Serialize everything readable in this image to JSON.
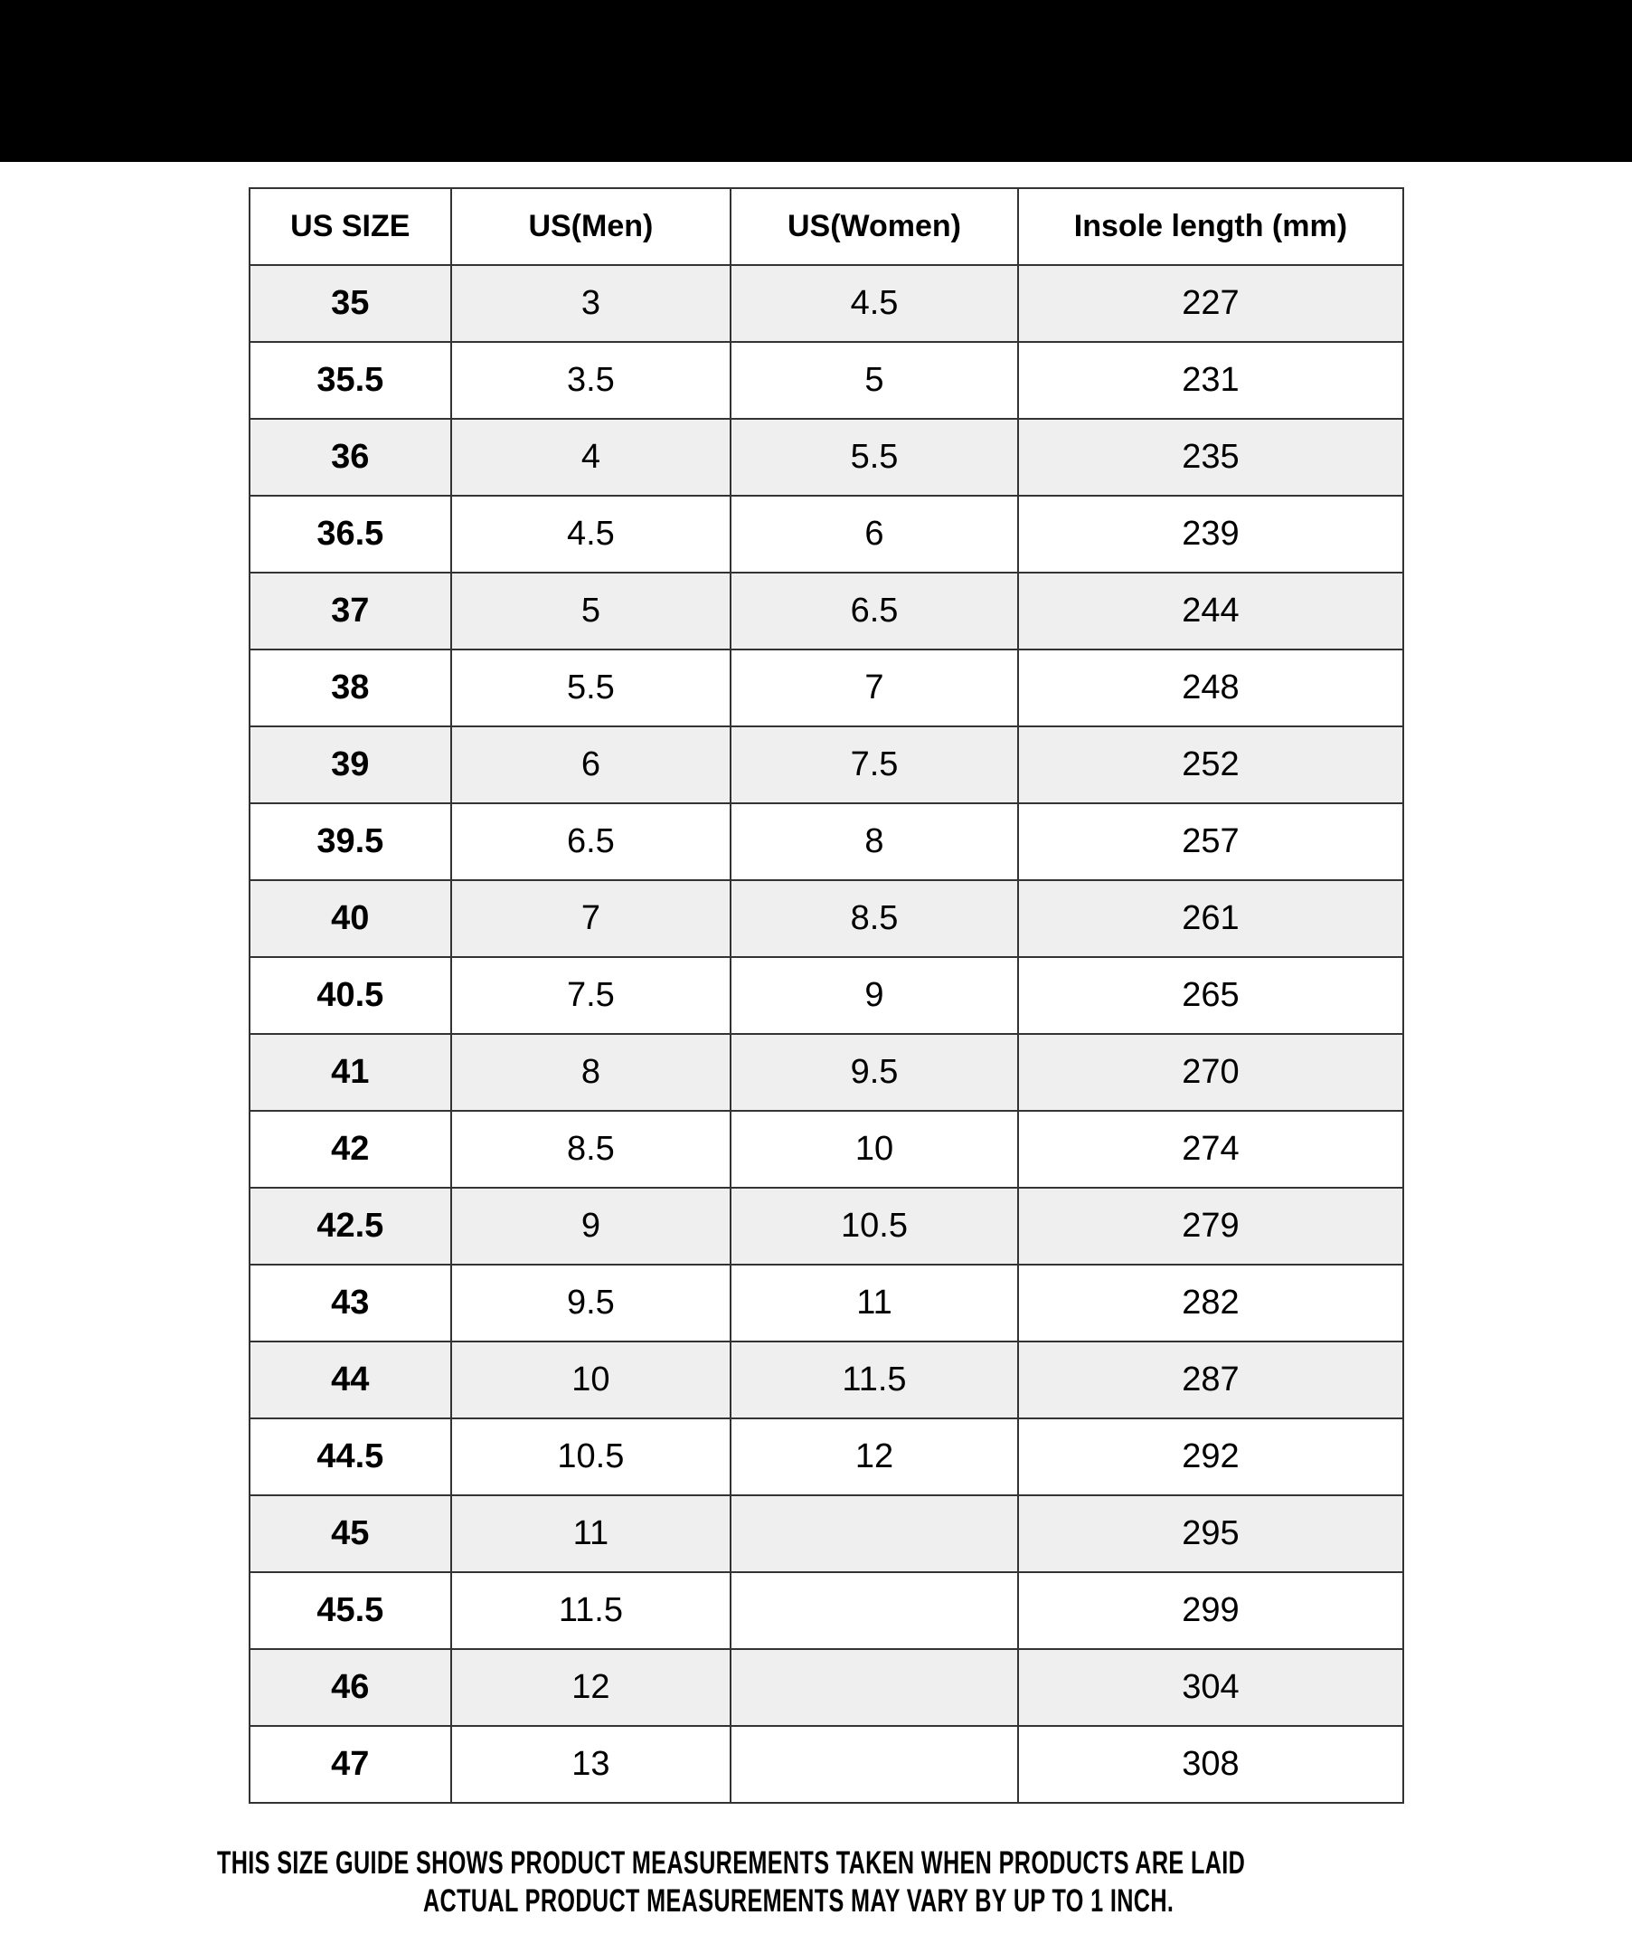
{
  "table": {
    "headers": [
      "US SIZE",
      "US(Men)",
      "US(Women)",
      "Insole length (mm)"
    ],
    "rows": [
      [
        "35",
        "3",
        "4.5",
        "227"
      ],
      [
        "35.5",
        "3.5",
        "5",
        "231"
      ],
      [
        "36",
        "4",
        "5.5",
        "235"
      ],
      [
        "36.5",
        "4.5",
        "6",
        "239"
      ],
      [
        "37",
        "5",
        "6.5",
        "244"
      ],
      [
        "38",
        "5.5",
        "7",
        "248"
      ],
      [
        "39",
        "6",
        "7.5",
        "252"
      ],
      [
        "39.5",
        "6.5",
        "8",
        "257"
      ],
      [
        "40",
        "7",
        "8.5",
        "261"
      ],
      [
        "40.5",
        "7.5",
        "9",
        "265"
      ],
      [
        "41",
        "8",
        "9.5",
        "270"
      ],
      [
        "42",
        "8.5",
        "10",
        "274"
      ],
      [
        "42.5",
        "9",
        "10.5",
        "279"
      ],
      [
        "43",
        "9.5",
        "11",
        "282"
      ],
      [
        "44",
        "10",
        "11.5",
        "287"
      ],
      [
        "44.5",
        "10.5",
        "12",
        "292"
      ],
      [
        "45",
        "11",
        "",
        "295"
      ],
      [
        "45.5",
        "11.5",
        "",
        "299"
      ],
      [
        "46",
        "12",
        "",
        "304"
      ],
      [
        "47",
        "13",
        "",
        "308"
      ]
    ],
    "stripe_color": "#efefef"
  },
  "footer": {
    "line1": "THIS SIZE GUIDE SHOWS PRODUCT MEASUREMENTS TAKEN WHEN PRODUCTS ARE LAID",
    "line2": "ACTUAL PRODUCT MEASUREMENTS MAY VARY BY UP TO 1 INCH."
  }
}
